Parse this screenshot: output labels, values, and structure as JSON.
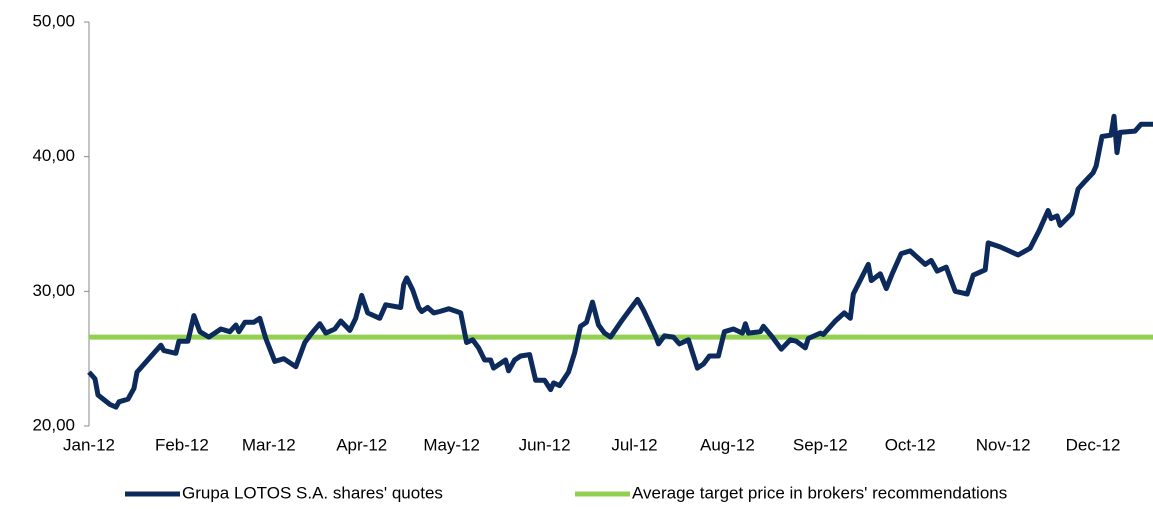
{
  "chart_data": {
    "type": "line",
    "xlim": [
      0,
      355
    ],
    "xticks": [
      {
        "value": 0,
        "label": "Jan-12"
      },
      {
        "value": 31,
        "label": "Feb-12"
      },
      {
        "value": 60,
        "label": "Mar-12"
      },
      {
        "value": 91,
        "label": "Apr-12"
      },
      {
        "value": 121,
        "label": "May-12"
      },
      {
        "value": 152,
        "label": "Jun-12"
      },
      {
        "value": 182,
        "label": "Jul-12"
      },
      {
        "value": 213,
        "label": "Aug-12"
      },
      {
        "value": 244,
        "label": "Sep-12"
      },
      {
        "value": 274,
        "label": "Oct-12"
      },
      {
        "value": 305,
        "label": "Nov-12"
      },
      {
        "value": 335,
        "label": "Dec-12"
      }
    ],
    "ylim": [
      20,
      50
    ],
    "yticks": [
      {
        "value": 20,
        "label": "20,00"
      },
      {
        "value": 30,
        "label": "30,00"
      },
      {
        "value": 40,
        "label": "40,00"
      },
      {
        "value": 50,
        "label": "50,00"
      }
    ],
    "grid": false,
    "legend": "bottom",
    "series": [
      {
        "name": "Grupa LOTOS S.A. shares' quotes",
        "color": "#0d2a5c",
        "x": [
          0,
          2,
          3,
          7,
          9,
          10,
          13,
          15,
          16,
          20,
          24,
          25,
          29,
          30,
          33,
          35,
          37,
          40,
          44,
          47,
          49,
          50,
          52,
          55,
          57,
          59,
          62,
          65,
          69,
          72,
          74,
          77,
          79,
          82,
          84,
          87,
          89,
          91,
          93,
          97,
          99,
          104,
          105,
          106,
          108,
          110,
          111,
          113,
          115,
          117,
          120,
          124,
          126,
          128,
          130,
          132,
          134,
          135,
          139,
          140,
          142,
          144,
          147,
          149,
          152,
          154,
          155,
          157,
          160,
          162,
          164,
          166,
          168,
          170,
          172,
          174,
          178,
          180,
          183,
          185,
          189,
          190,
          192,
          195,
          197,
          200,
          203,
          205,
          207,
          210,
          212,
          215,
          218,
          219,
          220,
          224,
          225,
          228,
          231,
          234,
          236,
          239,
          240,
          244,
          245,
          249,
          252,
          254,
          255,
          260,
          261,
          264,
          266,
          268,
          271,
          274,
          279,
          281,
          283,
          286,
          289,
          293,
          295,
          299,
          300,
          304,
          307,
          310,
          314,
          317,
          320,
          321,
          323,
          324,
          328,
          330,
          332,
          335,
          336,
          338,
          341,
          342,
          343,
          344,
          349,
          351,
          355
        ],
        "values": [
          24.0,
          23.5,
          22.3,
          21.6,
          21.4,
          21.8,
          22.0,
          22.8,
          24.0,
          25.0,
          26.0,
          25.6,
          25.4,
          26.3,
          26.3,
          28.2,
          27.0,
          26.6,
          27.2,
          27.0,
          27.5,
          27.0,
          27.7,
          27.7,
          28.0,
          26.5,
          24.8,
          25.0,
          24.4,
          26.2,
          26.8,
          27.6,
          26.9,
          27.2,
          27.8,
          27.1,
          28.0,
          29.7,
          28.4,
          28.0,
          29.0,
          28.8,
          30.5,
          31.0,
          30.1,
          28.8,
          28.5,
          28.8,
          28.4,
          28.5,
          28.7,
          28.4,
          26.2,
          26.4,
          25.8,
          24.9,
          24.9,
          24.3,
          24.9,
          24.1,
          24.9,
          25.2,
          25.3,
          23.4,
          23.4,
          22.7,
          23.2,
          23.0,
          24.0,
          25.4,
          27.4,
          27.7,
          29.2,
          27.5,
          26.9,
          26.6,
          27.9,
          28.5,
          29.4,
          28.6,
          26.7,
          26.1,
          26.7,
          26.6,
          26.1,
          26.4,
          24.3,
          24.6,
          25.2,
          25.2,
          27.0,
          27.2,
          26.9,
          27.6,
          26.9,
          27.0,
          27.4,
          26.6,
          25.7,
          26.4,
          26.3,
          25.8,
          26.5,
          26.9,
          26.8,
          27.8,
          28.4,
          28.0,
          29.8,
          32.0,
          30.8,
          31.3,
          30.2,
          31.3,
          32.8,
          33.0,
          32.0,
          32.3,
          31.5,
          31.8,
          30.0,
          29.8,
          31.2,
          31.6,
          33.6,
          33.3,
          33.0,
          32.7,
          33.2,
          34.5,
          36.0,
          35.4,
          35.6,
          34.9,
          35.8,
          37.6,
          38.1,
          38.8,
          39.3,
          41.5,
          41.6,
          43.0,
          40.3,
          41.8,
          41.9,
          42.4,
          42.4
        ]
      },
      {
        "name": "Average target price in brokers' recommendations",
        "color": "#92d050",
        "x": [
          0,
          355
        ],
        "values": [
          26.6,
          26.6
        ]
      }
    ]
  }
}
